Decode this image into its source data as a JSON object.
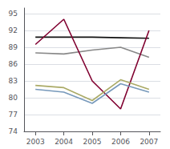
{
  "chart_data": {
    "type": "line",
    "x": [
      2003,
      2004,
      2005,
      2006,
      2007
    ],
    "series": [
      {
        "color": "#111111",
        "values": [
          90.8,
          90.8,
          90.8,
          90.7,
          90.6
        ]
      },
      {
        "color": "#888888",
        "values": [
          88.0,
          87.8,
          88.5,
          89.0,
          87.2
        ]
      },
      {
        "color": "#800030",
        "values": [
          89.5,
          94.0,
          83.0,
          78.0,
          92.0
        ]
      },
      {
        "color": "#7799BB",
        "values": [
          81.5,
          81.0,
          79.0,
          82.5,
          81.0
        ]
      },
      {
        "color": "#AAAA66",
        "values": [
          82.2,
          81.8,
          79.5,
          83.2,
          81.5
        ]
      }
    ],
    "xlim": [
      2002.6,
      2007.4
    ],
    "xticks": [
      2003,
      2004,
      2005,
      2006,
      2007
    ],
    "ylim": [
      74,
      96
    ],
    "yticks": [
      74,
      77,
      80,
      83,
      86,
      89,
      92,
      95
    ],
    "grid": true
  }
}
